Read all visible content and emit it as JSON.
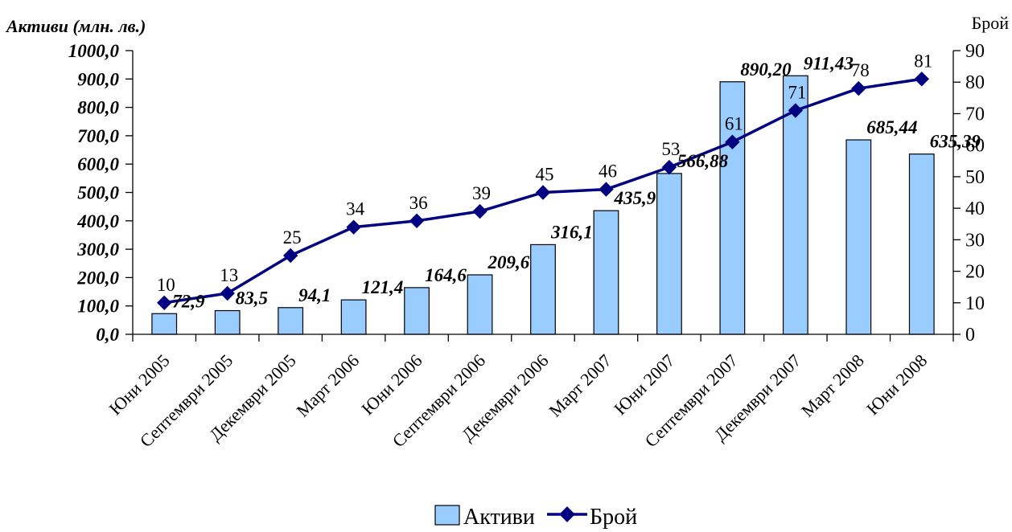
{
  "chart_data": {
    "type": "bar+line",
    "categories": [
      "Юни 2005",
      "Септември 2005",
      "Декември 2005",
      "Март 2006",
      "Юни 2006",
      "Септември 2006",
      "Декември 2006",
      "Март 2007",
      "Юни 2007",
      "Септември 2007",
      "Декември 2007",
      "Март 2008",
      "Юни 2008"
    ],
    "series": [
      {
        "name": "Активи",
        "type": "bar",
        "axis": "left",
        "values": [
          72.9,
          83.5,
          94.1,
          121.4,
          164.6,
          209.6,
          316.1,
          435.9,
          566.88,
          890.2,
          911.43,
          685.44,
          635.39
        ],
        "labels": [
          "72,9",
          "83,5",
          "94,1",
          "121,4",
          "164,6",
          "209,6",
          "316,1",
          "435,9",
          "566,88",
          "890,20",
          "911,43",
          "685,44",
          "635,39"
        ],
        "color": "#99ccff"
      },
      {
        "name": "Брой",
        "type": "line",
        "axis": "right",
        "values": [
          10,
          13,
          25,
          34,
          36,
          39,
          45,
          46,
          53,
          61,
          71,
          78,
          81
        ],
        "labels": [
          "10",
          "13",
          "25",
          "34",
          "36",
          "39",
          "45",
          "46",
          "53",
          "61",
          "71",
          "78",
          "81"
        ],
        "color": "#000080"
      }
    ],
    "ylabel_left": "Активи (млн. лв.)",
    "ylabel_right": "Брой",
    "ylim_left": [
      0,
      1000
    ],
    "ylim_right": [
      0,
      90
    ],
    "yticks_left": [
      "0,0",
      "100,0",
      "200,0",
      "300,0",
      "400,0",
      "500,0",
      "600,0",
      "700,0",
      "800,0",
      "900,0",
      "1000,0"
    ],
    "yticks_right": [
      "0",
      "10",
      "20",
      "30",
      "40",
      "50",
      "60",
      "70",
      "80",
      "90"
    ],
    "grid": false,
    "legend": "bottom-center"
  }
}
